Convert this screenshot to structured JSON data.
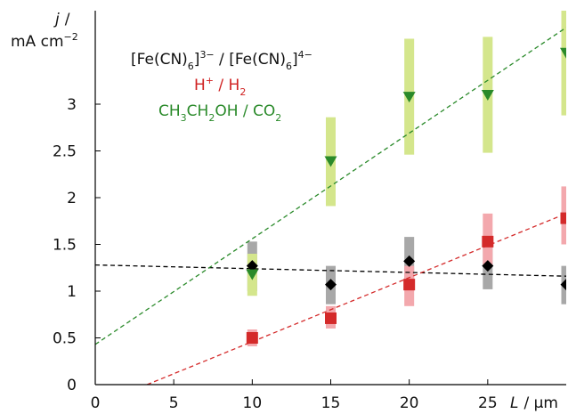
{
  "chart_data": {
    "type": "scatter",
    "xlabel_italic": "L",
    "xlabel_unit": "/ μm",
    "ylabel_italic": "j",
    "ylabel_slash": "/",
    "ylabel_unit": "mA cm",
    "ylabel_unit_sup": "−2",
    "xlim": [
      0,
      30
    ],
    "ylim": [
      0,
      4
    ],
    "x_ticks": [
      "0",
      "5",
      "10",
      "15",
      "20",
      "25"
    ],
    "x_tick_values": [
      0,
      5,
      10,
      15,
      20,
      25
    ],
    "y_ticks": [
      "0",
      "0.5",
      "1",
      "1.5",
      "2",
      "2.5",
      "3"
    ],
    "y_tick_values": [
      0,
      0.5,
      1,
      1.5,
      2,
      2.5,
      3
    ],
    "grid": false,
    "legend_position": "top-left",
    "legend": [
      {
        "parts": [
          "[Fe(CN)",
          "6",
          "]",
          "3−",
          " / [Fe(CN)",
          "6",
          "]",
          "4−"
        ],
        "color": "#111111"
      },
      {
        "parts": [
          "H",
          "+",
          " / H",
          "2"
        ],
        "color": "#d02020"
      },
      {
        "parts": [
          "CH",
          "3",
          "CH",
          "2",
          "OH / CO",
          "2"
        ],
        "color": "#2a8a2a"
      }
    ],
    "series": [
      {
        "marker": "diamond",
        "color": "#000000",
        "error_color": "#a8a8a8",
        "points": [
          {
            "x": 10,
            "y": 1.27,
            "lo": 1.0,
            "hi": 1.53
          },
          {
            "x": 15,
            "y": 1.07,
            "lo": 0.86,
            "hi": 1.27
          },
          {
            "x": 20,
            "y": 1.32,
            "lo": 1.07,
            "hi": 1.58
          },
          {
            "x": 25,
            "y": 1.27,
            "lo": 1.02,
            "hi": 1.5
          },
          {
            "x": 30,
            "y": 1.07,
            "lo": 0.86,
            "hi": 1.27
          }
        ],
        "fit": {
          "x": [
            0,
            30
          ],
          "y": [
            1.28,
            1.16
          ],
          "dash": true
        }
      },
      {
        "marker": "square",
        "color": "#d42a2a",
        "error_color": "#f3a8ad",
        "points": [
          {
            "x": 10,
            "y": 0.5,
            "lo": 0.41,
            "hi": 0.59
          },
          {
            "x": 15,
            "y": 0.71,
            "lo": 0.6,
            "hi": 0.84
          },
          {
            "x": 20,
            "y": 1.07,
            "lo": 0.84,
            "hi": 1.27
          },
          {
            "x": 25,
            "y": 1.53,
            "lo": 1.27,
            "hi": 1.83
          },
          {
            "x": 30,
            "y": 1.78,
            "lo": 1.5,
            "hi": 2.12
          }
        ],
        "fit": {
          "x": [
            3.3,
            30
          ],
          "y": [
            0,
            1.83
          ],
          "dash": true
        }
      },
      {
        "marker": "triangle-down",
        "color": "#2a8a2a",
        "error_color": "#d4e68c",
        "points": [
          {
            "x": 10,
            "y": 1.18,
            "lo": 0.95,
            "hi": 1.4
          },
          {
            "x": 15,
            "y": 2.39,
            "lo": 1.91,
            "hi": 2.86
          },
          {
            "x": 20,
            "y": 3.08,
            "lo": 2.46,
            "hi": 3.7
          },
          {
            "x": 25,
            "y": 3.1,
            "lo": 2.48,
            "hi": 3.72
          },
          {
            "x": 30,
            "y": 3.55,
            "lo": 2.88,
            "hi": 4.05
          }
        ],
        "fit": {
          "x": [
            0,
            30
          ],
          "y": [
            0.43,
            3.82
          ],
          "dash": true
        }
      }
    ]
  }
}
